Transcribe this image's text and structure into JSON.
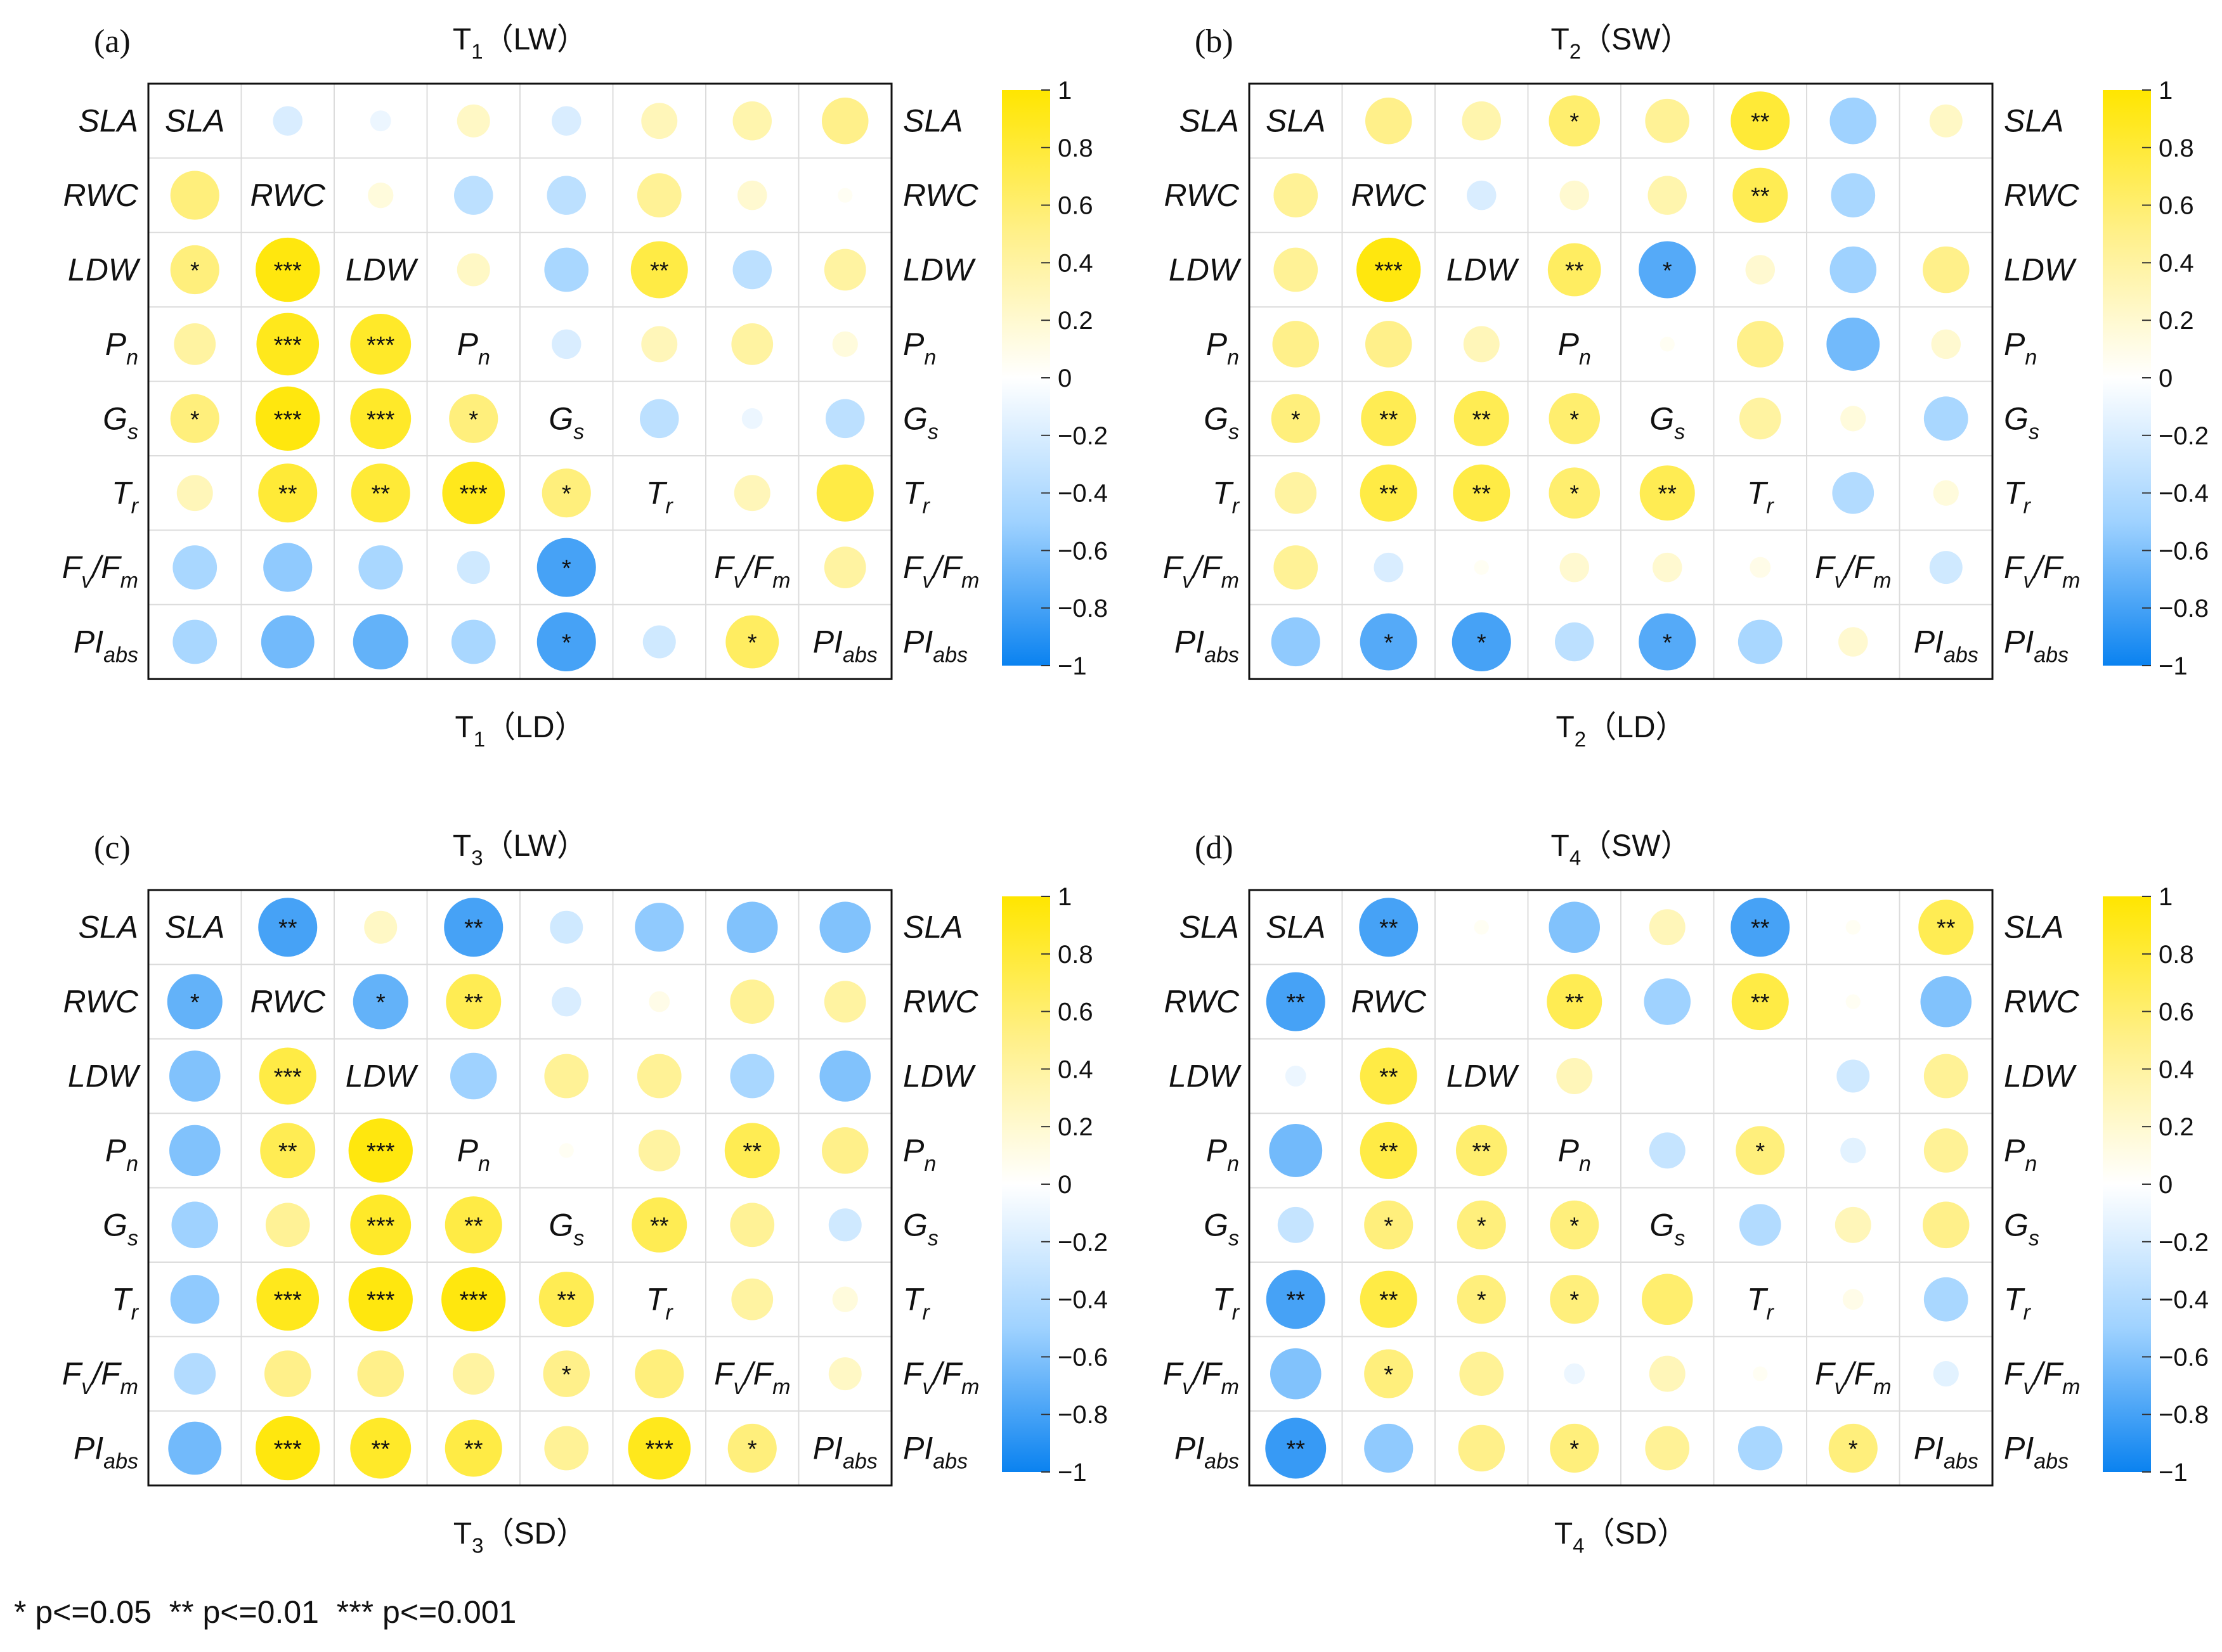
{
  "chart_data": {
    "type": "heatmap",
    "variables": [
      "SLA",
      "RWC",
      "LDW",
      "Pn",
      "Gs",
      "Tr",
      "Fv/Fm",
      "PIabs"
    ],
    "variable_labels": [
      {
        "main": "SLA",
        "sub": ""
      },
      {
        "main": "RWC",
        "sub": ""
      },
      {
        "main": "LDW",
        "sub": ""
      },
      {
        "main": "P",
        "sub": "n"
      },
      {
        "main": "G",
        "sub": "s"
      },
      {
        "main": "T",
        "sub": "r"
      },
      {
        "main": "F",
        "sub": "v",
        "main2": "/F",
        "sub2": "m"
      },
      {
        "main": "PI",
        "sub": "abs"
      }
    ],
    "colorbar": {
      "min": -1,
      "max": 1,
      "ticks": [
        "1",
        "0.8",
        "0.6",
        "0.4",
        "0.2",
        "0",
        "−0.2",
        "−0.4",
        "−0.6",
        "−0.8",
        "−1"
      ],
      "colors": {
        "pos_max": "#ffe600",
        "zero": "#ffffff",
        "neg_max": "#0a82f0"
      }
    },
    "footnote": "* p<=0.05  ** p<=0.01  *** p<=0.001",
    "panels": [
      {
        "letter": "(a)",
        "top_title": {
          "main": "T",
          "sub": "1",
          "rest": "（LW）"
        },
        "bottom_title": {
          "main": "T",
          "sub": "1",
          "rest": "（LD）"
        },
        "values": [
          [
            1,
            -0.2,
            -0.1,
            0.25,
            -0.2,
            0.3,
            0.35,
            0.5
          ],
          [
            0.55,
            1,
            0.15,
            -0.35,
            -0.35,
            0.45,
            0.2,
            0.05
          ],
          [
            0.55,
            0.95,
            1,
            0.25,
            -0.45,
            0.75,
            -0.35,
            0.4
          ],
          [
            0.4,
            0.9,
            0.85,
            1,
            -0.2,
            0.3,
            0.4,
            0.15
          ],
          [
            0.55,
            0.95,
            0.85,
            0.55,
            1,
            -0.35,
            -0.1,
            -0.35
          ],
          [
            0.3,
            0.8,
            0.8,
            0.9,
            0.55,
            1,
            0.3,
            0.75
          ],
          [
            -0.45,
            -0.55,
            -0.45,
            -0.25,
            -0.8,
            0,
            1,
            0.4
          ],
          [
            -0.45,
            -0.65,
            -0.7,
            -0.45,
            -0.8,
            -0.25,
            0.65,
            1
          ]
        ],
        "stars": [
          [
            "",
            "",
            "",
            "",
            "",
            "",
            "",
            ""
          ],
          [
            "",
            "",
            "",
            "",
            "",
            "",
            "",
            ""
          ],
          [
            "*",
            "***",
            "",
            "",
            "",
            "**",
            "",
            ""
          ],
          [
            "",
            "***",
            "***",
            "",
            "",
            "",
            "",
            ""
          ],
          [
            "*",
            "***",
            "***",
            "*",
            "",
            "",
            "",
            ""
          ],
          [
            "",
            "**",
            "**",
            "***",
            "*",
            "",
            "",
            ""
          ],
          [
            "",
            "",
            "",
            "",
            "*",
            "",
            "",
            ""
          ],
          [
            "",
            "",
            "",
            "",
            "*",
            "",
            "*",
            ""
          ]
        ]
      },
      {
        "letter": "(b)",
        "top_title": {
          "main": "T",
          "sub": "2",
          "rest": "（SW）"
        },
        "bottom_title": {
          "main": "T",
          "sub": "2",
          "rest": "（LD）"
        },
        "values": [
          [
            1,
            0.5,
            0.35,
            0.6,
            0.45,
            0.8,
            -0.5,
            0.25
          ],
          [
            0.45,
            1,
            -0.2,
            0.2,
            0.35,
            0.7,
            -0.45,
            0
          ],
          [
            0.45,
            0.95,
            1,
            0.65,
            -0.75,
            0.2,
            -0.5,
            0.5
          ],
          [
            0.5,
            0.5,
            0.3,
            1,
            0.05,
            0.5,
            -0.65,
            0.2
          ],
          [
            0.55,
            0.7,
            0.7,
            0.6,
            1,
            0.4,
            0.15,
            -0.45
          ],
          [
            0.4,
            0.75,
            0.75,
            0.6,
            0.7,
            1,
            -0.4,
            0.15
          ],
          [
            0.45,
            -0.2,
            0.05,
            0.2,
            0.2,
            0.1,
            1,
            -0.25
          ],
          [
            -0.55,
            -0.75,
            -0.8,
            -0.35,
            -0.75,
            -0.45,
            0.2,
            1
          ]
        ],
        "stars": [
          [
            "",
            "",
            "",
            "*",
            "",
            "**",
            "",
            ""
          ],
          [
            "",
            "",
            "",
            "",
            "",
            "**",
            "",
            ""
          ],
          [
            "",
            "***",
            "",
            "**",
            "*",
            "",
            "",
            ""
          ],
          [
            "",
            "",
            "",
            "",
            "",
            "",
            "",
            ""
          ],
          [
            "*",
            "**",
            "**",
            "*",
            "",
            "",
            "",
            ""
          ],
          [
            "",
            "**",
            "**",
            "*",
            "**",
            "",
            "",
            ""
          ],
          [
            "",
            "",
            "",
            "",
            "",
            "",
            "",
            ""
          ],
          [
            "",
            "*",
            "*",
            "",
            "*",
            "",
            "",
            ""
          ]
        ]
      },
      {
        "letter": "(c)",
        "top_title": {
          "main": "T",
          "sub": "3",
          "rest": "（LW）"
        },
        "bottom_title": {
          "main": "T",
          "sub": "3",
          "rest": "（SD）"
        },
        "values": [
          [
            1,
            -0.8,
            0.25,
            -0.8,
            -0.25,
            -0.55,
            -0.6,
            -0.6
          ],
          [
            -0.7,
            1,
            -0.7,
            0.7,
            -0.2,
            0.1,
            0.45,
            0.4
          ],
          [
            -0.6,
            0.75,
            1,
            -0.5,
            0.45,
            0.45,
            -0.45,
            -0.6
          ],
          [
            -0.6,
            0.7,
            0.95,
            1,
            0.05,
            0.4,
            0.7,
            0.5
          ],
          [
            -0.5,
            0.45,
            0.85,
            0.75,
            1,
            0.7,
            0.45,
            -0.25
          ],
          [
            -0.55,
            0.9,
            0.95,
            0.95,
            0.7,
            1,
            0.4,
            0.15
          ],
          [
            -0.4,
            0.5,
            0.5,
            0.4,
            0.5,
            0.55,
            1,
            0.25
          ],
          [
            -0.65,
            0.95,
            0.85,
            0.75,
            0.45,
            0.9,
            0.55,
            1
          ]
        ],
        "stars": [
          [
            "",
            "**",
            "",
            "**",
            "",
            "",
            "",
            ""
          ],
          [
            "*",
            "",
            "*",
            "**",
            "",
            "",
            "",
            ""
          ],
          [
            "",
            "***",
            "",
            "",
            "",
            "",
            "",
            ""
          ],
          [
            "",
            "**",
            "***",
            "",
            "",
            "",
            "**",
            ""
          ],
          [
            "",
            "",
            "***",
            "**",
            "",
            "**",
            "",
            ""
          ],
          [
            "",
            "***",
            "***",
            "***",
            "**",
            "",
            "",
            ""
          ],
          [
            "",
            "",
            "",
            "",
            "*",
            "",
            "",
            ""
          ],
          [
            "",
            "***",
            "**",
            "**",
            "",
            "***",
            "*",
            ""
          ]
        ]
      },
      {
        "letter": "(d)",
        "top_title": {
          "main": "T",
          "sub": "4",
          "rest": "（SW）"
        },
        "bottom_title": {
          "main": "T",
          "sub": "4",
          "rest": "（SD）"
        },
        "values": [
          [
            1,
            -0.8,
            0.05,
            -0.6,
            0.3,
            -0.8,
            0.05,
            0.7
          ],
          [
            -0.8,
            1,
            0,
            0.7,
            -0.5,
            0.75,
            0.05,
            -0.6
          ],
          [
            -0.1,
            0.75,
            1,
            0.3,
            0,
            0,
            -0.25,
            0.45
          ],
          [
            -0.65,
            0.75,
            0.6,
            1,
            -0.3,
            0.55,
            -0.15,
            0.45
          ],
          [
            -0.3,
            0.55,
            0.55,
            0.55,
            1,
            -0.4,
            0.3,
            0.5
          ],
          [
            -0.8,
            0.75,
            0.55,
            0.55,
            0.6,
            1,
            0.1,
            -0.45
          ],
          [
            -0.6,
            0.55,
            0.45,
            -0.1,
            0.3,
            0.05,
            1,
            -0.15
          ],
          [
            -0.85,
            -0.55,
            0.5,
            0.55,
            0.45,
            -0.45,
            0.55,
            1
          ]
        ],
        "stars": [
          [
            "",
            "**",
            "",
            "",
            "",
            "**",
            "",
            "**"
          ],
          [
            "**",
            "",
            "",
            "**",
            "",
            "**",
            "",
            ""
          ],
          [
            "",
            "**",
            "",
            "",
            "",
            "",
            "",
            ""
          ],
          [
            "",
            "**",
            "**",
            "",
            "",
            "*",
            "",
            ""
          ],
          [
            "",
            "*",
            "*",
            "*",
            "",
            "",
            "",
            ""
          ],
          [
            "**",
            "**",
            "*",
            "*",
            "",
            "",
            "",
            ""
          ],
          [
            "",
            "*",
            "",
            "",
            "",
            "",
            "",
            ""
          ],
          [
            "**",
            "",
            "",
            "*",
            "",
            "",
            "*",
            ""
          ]
        ]
      }
    ]
  }
}
